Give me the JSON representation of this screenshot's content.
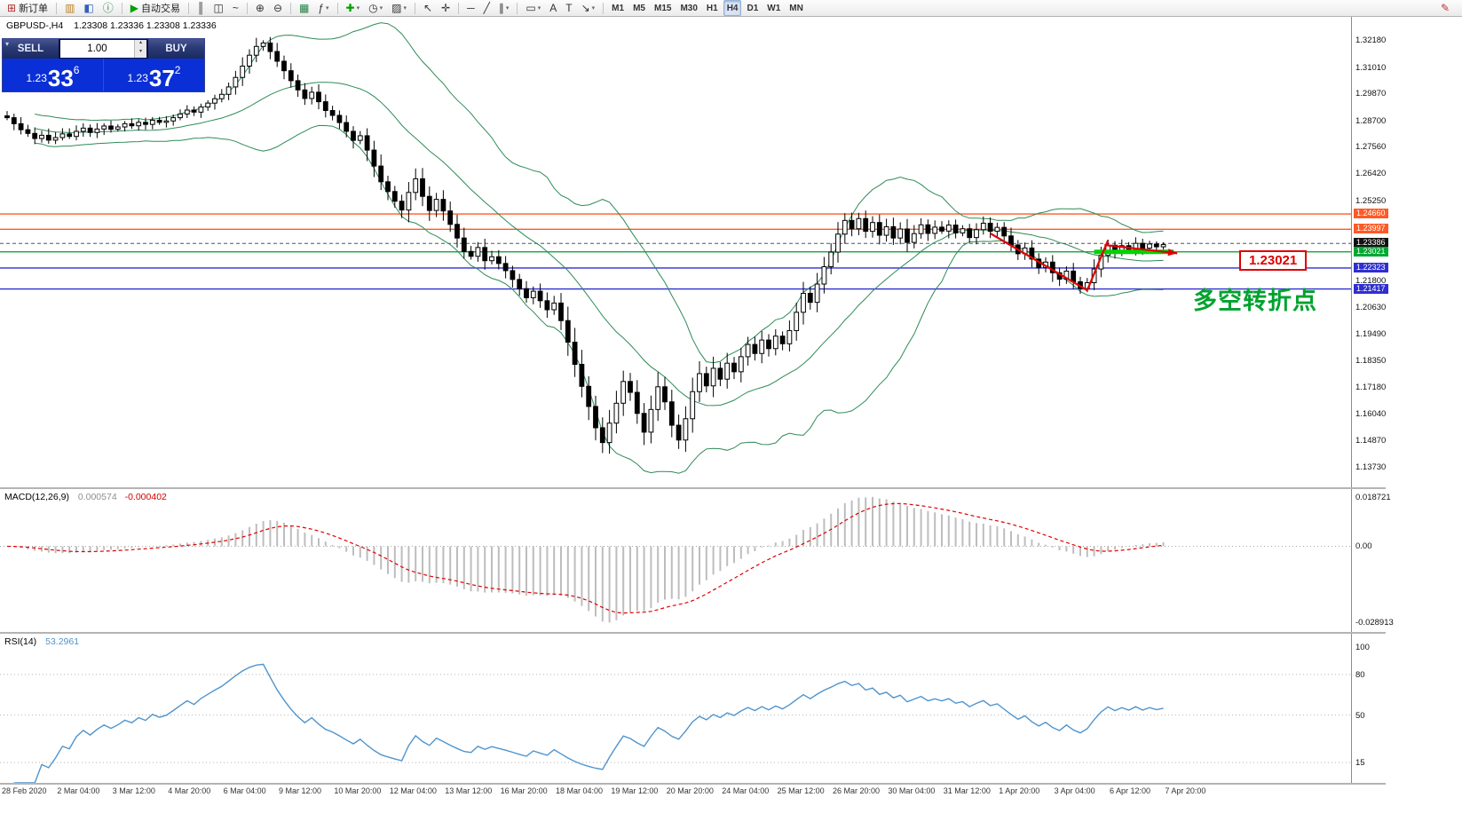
{
  "toolbar": {
    "groups": [
      {
        "items": [
          {
            "name": "new-order-button",
            "glyph": "⊞",
            "color": "#b03030",
            "label": "新订单"
          }
        ]
      },
      {
        "items": [
          {
            "name": "charts-window-button",
            "glyph": "▥",
            "color": "#c08020"
          },
          {
            "name": "market-watch-button",
            "glyph": "◧",
            "color": "#3060c0"
          },
          {
            "name": "data-window-button",
            "glyph": "ⓘ",
            "color": "#208040"
          }
        ]
      },
      {
        "items": [
          {
            "name": "autotrading-button",
            "glyph": "▶",
            "color": "#00a000",
            "label": "自动交易"
          }
        ]
      },
      {
        "items": [
          {
            "name": "bar-chart-button",
            "glyph": "║"
          },
          {
            "name": "candlestick-chart-button",
            "glyph": "◫"
          },
          {
            "name": "line-chart-button",
            "glyph": "~"
          }
        ]
      },
      {
        "items": [
          {
            "name": "zoom-in-button",
            "glyph": "⊕"
          },
          {
            "name": "zoom-out-button",
            "glyph": "⊖"
          }
        ]
      },
      {
        "items": [
          {
            "name": "grid-button",
            "glyph": "▦",
            "color": "#208040"
          },
          {
            "name": "indicators-list-button",
            "glyph": "ƒ",
            "dropdown": true
          }
        ]
      },
      {
        "items": [
          {
            "name": "add-indicator-button",
            "glyph": "✚",
            "color": "#00a000",
            "dropdown": true
          },
          {
            "name": "periods-button",
            "glyph": "◷",
            "dropdown": true
          },
          {
            "name": "templates-button",
            "glyph": "▨",
            "dropdown": true
          }
        ]
      },
      {
        "items": [
          {
            "name": "cursor-button",
            "glyph": "↖"
          },
          {
            "name": "crosshair-button",
            "glyph": "✛"
          }
        ]
      },
      {
        "items": [
          {
            "name": "horizontal-line-button",
            "glyph": "─"
          },
          {
            "name": "trendline-button",
            "glyph": "╱"
          },
          {
            "name": "channel-button",
            "glyph": "∥",
            "dropdown": true
          }
        ]
      },
      {
        "items": [
          {
            "name": "shapes-button",
            "glyph": "▭",
            "dropdown": true
          },
          {
            "name": "text-button",
            "glyph": "A"
          },
          {
            "name": "text-label-button",
            "glyph": "T"
          },
          {
            "name": "arrows-button",
            "glyph": "↘",
            "dropdown": true
          }
        ]
      },
      {
        "items": [
          {
            "name": "timeframe-m1",
            "label": "M1",
            "tf": true
          },
          {
            "name": "timeframe-m5",
            "label": "M5",
            "tf": true
          },
          {
            "name": "timeframe-m15",
            "label": "M15",
            "tf": true
          },
          {
            "name": "timeframe-m30",
            "label": "M30",
            "tf": true
          },
          {
            "name": "timeframe-h1",
            "label": "H1",
            "tf": true
          },
          {
            "name": "timeframe-h4",
            "label": "H4",
            "tf": true,
            "active": true
          },
          {
            "name": "timeframe-d1",
            "label": "D1",
            "tf": true
          },
          {
            "name": "timeframe-w1",
            "label": "W1",
            "tf": true
          },
          {
            "name": "timeframe-mn",
            "label": "MN",
            "tf": true
          }
        ]
      }
    ],
    "right_icon": {
      "name": "edit-button",
      "glyph": "✎",
      "color": "#c03030"
    }
  },
  "chart": {
    "symbol_period": "GBPUSD-,H4",
    "ohlc": "1.23308 1.23336 1.23308 1.23336"
  },
  "trade_panel": {
    "sell_label": "SELL",
    "buy_label": "BUY",
    "volume": "1.00",
    "bid": {
      "prefix": "1.23",
      "big": "33",
      "sup": "6"
    },
    "ask": {
      "prefix": "1.23",
      "big": "37",
      "sup": "2"
    }
  },
  "macd": {
    "label": "MACD(12,26,9)",
    "value_main": "0.000574",
    "value_signal": "-0.000402",
    "axis": [
      "0.018721",
      "0.00",
      "-0.028913"
    ]
  },
  "rsi": {
    "label": "RSI(14)",
    "value": "53.2961",
    "axis": [
      "100",
      "80",
      "50",
      "15"
    ]
  },
  "annotations": {
    "price_label": "1.23021",
    "turning_point": "多空转折点",
    "trend_color": "#e00000",
    "support_color": "#00d300",
    "trend_segments": [
      {
        "from": [
          142,
          1.2382
        ],
        "to": [
          156,
          1.2136
        ]
      },
      {
        "from": [
          156,
          1.2136
        ],
        "to": [
          159,
          1.2352
        ]
      },
      {
        "from": [
          158.5,
          1.2332
        ],
        "to": [
          169,
          1.2296
        ],
        "arrow": true
      }
    ],
    "support_segment": {
      "price": 1.23021,
      "from": 157,
      "to": 168.5
    }
  },
  "chart_data": {
    "type": "candlestick",
    "symbol": "GBPUSD",
    "timeframe": "H4",
    "ohlc_current": {
      "open": 1.23308,
      "high": 1.23336,
      "low": 1.23308,
      "close": 1.23336
    },
    "price_axis_ticks": [
      "1.32180",
      "1.31010",
      "1.29870",
      "1.28700",
      "1.27560",
      "1.26420",
      "1.25250",
      "1.21800",
      "1.20630",
      "1.19490",
      "1.18350",
      "1.17180",
      "1.16040",
      "1.14870",
      "1.13730"
    ],
    "horizontal_levels": [
      {
        "label": "1.24660",
        "color": "#ff5a26",
        "width": 1.4,
        "tag_bg": "#ff5a26"
      },
      {
        "label": "1.23997",
        "color": "#ff5a26",
        "width": 1.4,
        "tag_bg": "#ff5a26"
      },
      {
        "label": "1.23386",
        "color": "#555555",
        "width": 1,
        "dashed": true,
        "tag_bg": "#111111"
      },
      {
        "label": "1.23021",
        "color": "#009926",
        "width": 1.2,
        "tag_bg": "#00a832"
      },
      {
        "label": "1.22323",
        "color": "#2f2fd0",
        "width": 1.4,
        "tag_bg": "#2f2fd0"
      },
      {
        "label": "1.21417",
        "color": "#2f2fd0",
        "width": 1.4,
        "tag_bg": "#2f2fd0"
      }
    ],
    "bollinger": {
      "period": 20,
      "deviation": 2,
      "color": "#2e8b57"
    },
    "macd": {
      "fast": 12,
      "slow": 26,
      "signal": 9,
      "hist_color": "#bdbdbd",
      "signal_color": "#e00000",
      "axis_max": 0.018721,
      "axis_min": -0.028913
    },
    "rsi": {
      "period": 14,
      "line_color": "#4f94cd",
      "levels": [
        80,
        50,
        15
      ]
    },
    "candles": {
      "up_color": "#ffffff",
      "down_color": "#000000",
      "outline": "#000000",
      "first_open": 1.289,
      "closes": [
        1.2882,
        1.2856,
        1.283,
        1.2814,
        1.2792,
        1.2806,
        1.2785,
        1.2796,
        1.2812,
        1.2801,
        1.2823,
        1.2837,
        1.2818,
        1.2833,
        1.2846,
        1.2832,
        1.2842,
        1.2856,
        1.2847,
        1.2862,
        1.2853,
        1.2871,
        1.2862,
        1.2868,
        1.2882,
        1.2898,
        1.2915,
        1.2906,
        1.2928,
        1.2945,
        1.2964,
        1.2983,
        1.3015,
        1.3056,
        1.3105,
        1.3152,
        1.319,
        1.3205,
        1.3168,
        1.3126,
        1.3085,
        1.3042,
        1.3002,
        1.2965,
        1.2992,
        1.2951,
        1.2913,
        1.2892,
        1.2861,
        1.2823,
        1.2784,
        1.2804,
        1.2742,
        1.2673,
        1.2605,
        1.2563,
        1.2521,
        1.2483,
        1.2559,
        1.2618,
        1.2542,
        1.2481,
        1.2529,
        1.2479,
        1.2421,
        1.2362,
        1.2304,
        1.2283,
        1.2321,
        1.2264,
        1.2281,
        1.2252,
        1.2221,
        1.2183,
        1.2143,
        1.2104,
        1.2132,
        1.2091,
        1.2052,
        1.2081,
        1.2005,
        1.1912,
        1.1816,
        1.1721,
        1.1634,
        1.1542,
        1.1478,
        1.1562,
        1.1648,
        1.1742,
        1.1695,
        1.1604,
        1.1523,
        1.1621,
        1.1719,
        1.1654,
        1.1553,
        1.1489,
        1.1581,
        1.1698,
        1.1776,
        1.1723,
        1.1799,
        1.1752,
        1.1821,
        1.1784,
        1.1849,
        1.1902,
        1.1863,
        1.1921,
        1.1884,
        1.1938,
        1.1905,
        1.1962,
        1.2041,
        1.2123,
        1.2084,
        1.2163,
        1.2238,
        1.2301,
        1.2379,
        1.2438,
        1.2402,
        1.2446,
        1.2391,
        1.2429,
        1.2374,
        1.2411,
        1.2362,
        1.2401,
        1.2343,
        1.2381,
        1.2419,
        1.2382,
        1.2409,
        1.2392,
        1.2418,
        1.2384,
        1.2402,
        1.2364,
        1.2398,
        1.2426,
        1.2391,
        1.2408,
        1.2371,
        1.2332,
        1.2294,
        1.2319,
        1.2271,
        1.2234,
        1.2258,
        1.2212,
        1.2184,
        1.2219,
        1.2173,
        1.2144,
        1.2169,
        1.2228,
        1.2287,
        1.2331,
        1.2304,
        1.2329,
        1.2312,
        1.2339,
        1.2318,
        1.2336,
        1.2324,
        1.23336
      ]
    },
    "x_axis_labels": [
      "28 Feb 2020",
      "2 Mar 04:00",
      "3 Mar 12:00",
      "4 Mar 20:00",
      "6 Mar 04:00",
      "9 Mar 12:00",
      "10 Mar 20:00",
      "12 Mar 04:00",
      "13 Mar 12:00",
      "16 Mar 20:00",
      "18 Mar 04:00",
      "19 Mar 12:00",
      "20 Mar 20:00",
      "24 Mar 04:00",
      "25 Mar 12:00",
      "26 Mar 20:00",
      "30 Mar 04:00",
      "31 Mar 12:00",
      "1 Apr 20:00",
      "3 Apr 04:00",
      "6 Apr 12:00",
      "7 Apr 20:00"
    ]
  }
}
